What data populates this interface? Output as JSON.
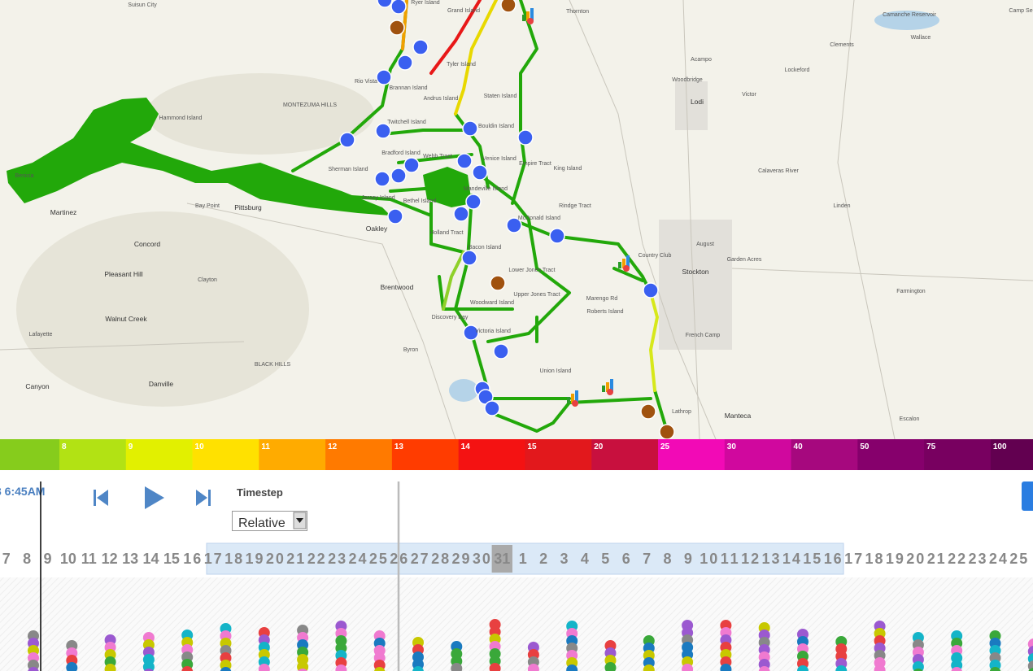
{
  "status_time": "3 6:45AM",
  "timestep_label": "Timestep",
  "timestep_option": "Relative",
  "map": {
    "labels": [
      "Suisun City",
      "Ryer Island",
      "Grand Island",
      "Thornton",
      "Camanche Reservoir",
      "Wallace",
      "Camp Se",
      "Clements",
      "Acampo",
      "Lockeford",
      "Woodbridge",
      "Lodi",
      "Victor",
      "Tyler Island",
      "Rio Vista",
      "Brannan Island",
      "Andrus Island",
      "Staten Island",
      "MONTEZUMA HILLS",
      "Twitchell Island",
      "Bouldin Island",
      "Hammond Island",
      "Webb Tract",
      "Venice Island",
      "Empire Tract",
      "King Island",
      "Sherman Island",
      "Bradford Island",
      "Jersey Island",
      "Bethel Island",
      "Mandeville Island",
      "Rindge Tract",
      "McDonald Island",
      "Holland Tract",
      "Bacon Island",
      "Benicia",
      "Martinez",
      "Bay Point",
      "Pittsburg",
      "Oakley",
      "Concord",
      "Pleasant Hill",
      "Clayton",
      "Walnut Creek",
      "Brentwood",
      "Lower Jones Tract",
      "Upper Jones Tract",
      "Country Club",
      "Stockton",
      "Garden Acres",
      "August",
      "Linden",
      "Farmington",
      "Marengo Rd",
      "Roberts Island",
      "Woodward Island",
      "Discovery Bay",
      "Victoria Island",
      "Byron",
      "Lafayette",
      "Canyon",
      "BLACK HILLS",
      "Danville",
      "Union Island",
      "French Camp",
      "Lathrop",
      "Manteca",
      "Escalon",
      "Calaveras River"
    ]
  },
  "color_scale": {
    "labels": [
      null,
      8,
      9,
      10,
      11,
      12,
      13,
      14,
      15,
      20,
      25,
      30,
      40,
      50,
      75,
      100
    ],
    "colors": [
      "#86cc1c",
      "#b2e214",
      "#e2f000",
      "#ffe100",
      "#ffab00",
      "#ff7a00",
      "#ff3c00",
      "#f41212",
      "#e2181c",
      "#c8103e",
      "#f20ab6",
      "#d0089e",
      "#a6087e",
      "#86006c",
      "#780060",
      "#620050"
    ]
  },
  "timeline": {
    "days": [
      7,
      8,
      9,
      10,
      11,
      12,
      13,
      14,
      15,
      16,
      17,
      18,
      19,
      20,
      21,
      22,
      23,
      24,
      25,
      26,
      27,
      28,
      29,
      30,
      31,
      1,
      2,
      3,
      4,
      5,
      6,
      7,
      8,
      9,
      10,
      11,
      12,
      13,
      14,
      15,
      16,
      17,
      18,
      19,
      20,
      21,
      22,
      23,
      24,
      25
    ]
  }
}
